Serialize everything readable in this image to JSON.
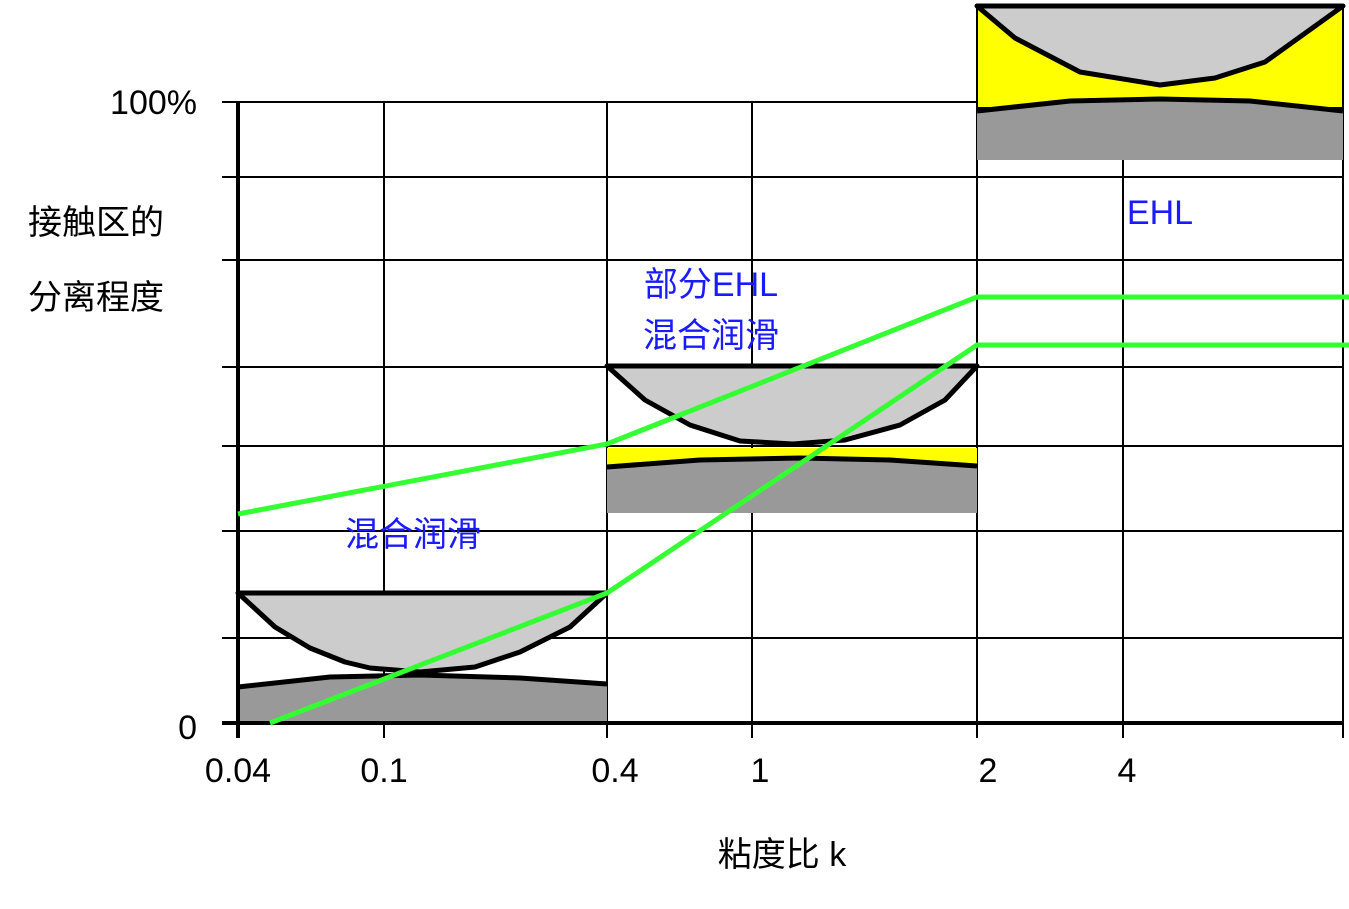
{
  "y_axis": {
    "top_label": "100%",
    "bottom_label": "0",
    "title_lines": [
      "接触区的",
      "分离程度"
    ]
  },
  "x_axis": {
    "labels": [
      "0.04",
      "0.1",
      "0.4",
      "1",
      "2",
      "4"
    ],
    "title": "粘度比 k"
  },
  "regions": [
    {
      "lines": [
        "混合润滑"
      ]
    },
    {
      "lines": [
        "部分EHL",
        "混合润滑"
      ]
    },
    {
      "lines": [
        "EHL"
      ]
    }
  ]
}
